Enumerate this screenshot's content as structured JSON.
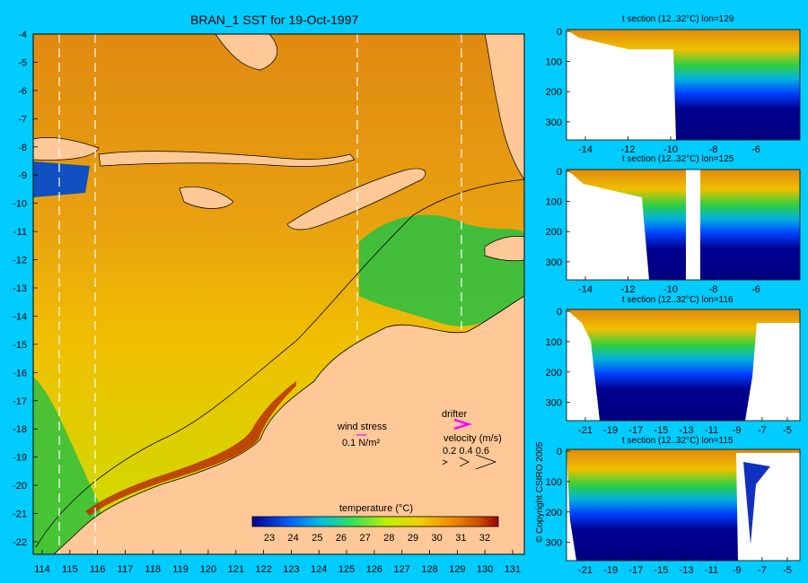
{
  "title": "BRAN_1 SST for 19-Oct-1997",
  "main_map": {
    "y_ticks": [
      "-4",
      "-5",
      "-6",
      "-7",
      "-8",
      "-9",
      "-10",
      "-11",
      "-12",
      "-13",
      "-14",
      "-15",
      "-16",
      "-17",
      "-18",
      "-19",
      "-20",
      "-21",
      "-22"
    ],
    "x_ticks": [
      "114",
      "115",
      "116",
      "117",
      "118",
      "119",
      "120",
      "121",
      "122",
      "123",
      "124",
      "125",
      "126",
      "127",
      "128",
      "129",
      "130",
      "131"
    ]
  },
  "legend": {
    "wind_stress_label": "wind stress",
    "wind_stress_scale": "0.1 N/m²",
    "drifter_label": "drifter",
    "velocity_label": "velocity (m/s)",
    "velocity_scale": "0.2 0.4 0.6",
    "colorbar_title": "temperature (°C)",
    "colorbar_ticks": [
      "23",
      "24",
      "25",
      "26",
      "27",
      "28",
      "29",
      "30",
      "31",
      "32"
    ]
  },
  "sections": [
    {
      "title": "t section (12..32°C) lon=129",
      "x_ticks": [
        "-14",
        "-12",
        "-10",
        "-8",
        "-6"
      ],
      "y_ticks": [
        "0",
        "100",
        "200",
        "300"
      ]
    },
    {
      "title": "t section (12..32°C) lon=125",
      "x_ticks": [
        "-14",
        "-12",
        "-10",
        "-8",
        "-6"
      ],
      "y_ticks": [
        "0",
        "100",
        "200",
        "300"
      ]
    },
    {
      "title": "t section (12..32°C) lon=116",
      "x_ticks": [
        "-21",
        "-19",
        "-17",
        "-15",
        "-13",
        "-11",
        "-9",
        "-7",
        "-5"
      ],
      "y_ticks": [
        "0",
        "100",
        "200",
        "300"
      ]
    },
    {
      "title": "t section (12..32°C) lon=115",
      "x_ticks": [
        "-21",
        "-19",
        "-17",
        "-15",
        "-13",
        "-11",
        "-9",
        "-7",
        "-5"
      ],
      "y_ticks": [
        "0",
        "100",
        "200",
        "300"
      ]
    }
  ],
  "copyright": "© Copyright CSIRO 2005",
  "colors": {
    "background": "#00ccff",
    "land": "#ffc896",
    "warm": "#e08a10",
    "mid": "#f0c000",
    "cool": "#30c040",
    "cold": "#000080"
  }
}
